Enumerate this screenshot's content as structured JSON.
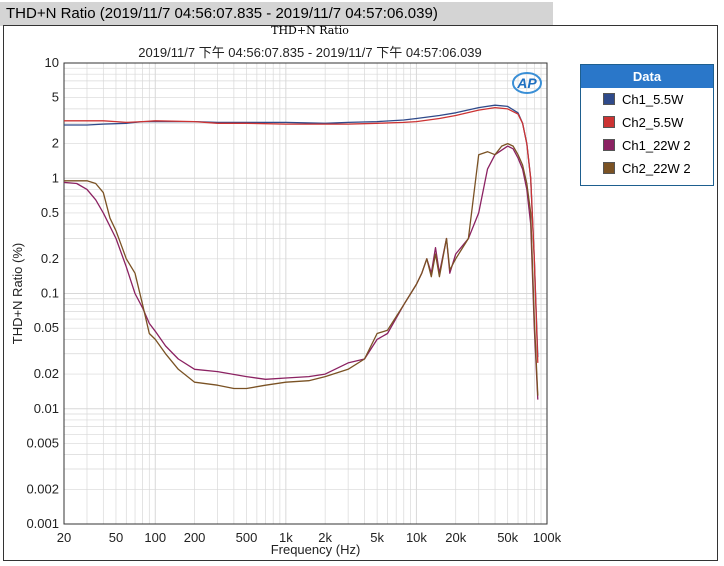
{
  "window": {
    "title": "THD+N Ratio (2019/11/7  04:56:07.835 - 2019/11/7  04:57:06.039)"
  },
  "colors": {
    "grid": "#d8d8d8",
    "axis": "#333333",
    "legend_header": "#2a77c9"
  },
  "chart_data": {
    "type": "line",
    "title": "THD+N Ratio",
    "subtitle": "2019/11/7 下午 04:56:07.835 - 2019/11/7 下午 04:57:06.039",
    "xlabel": "Frequency (Hz)",
    "ylabel": "THD+N Ratio (%)",
    "x_scale": "log",
    "y_scale": "log",
    "xlim": [
      20,
      100000
    ],
    "ylim": [
      0.001,
      10
    ],
    "grid": true,
    "legend_position": "right",
    "legend_title": "Data",
    "logo": "AP",
    "x_ticks": [
      {
        "v": 20,
        "label": "20"
      },
      {
        "v": 50,
        "label": "50"
      },
      {
        "v": 100,
        "label": "100"
      },
      {
        "v": 200,
        "label": "200"
      },
      {
        "v": 500,
        "label": "500"
      },
      {
        "v": 1000,
        "label": "1k"
      },
      {
        "v": 2000,
        "label": "2k"
      },
      {
        "v": 5000,
        "label": "5k"
      },
      {
        "v": 10000,
        "label": "10k"
      },
      {
        "v": 20000,
        "label": "20k"
      },
      {
        "v": 50000,
        "label": "50k"
      },
      {
        "v": 100000,
        "label": "100k"
      }
    ],
    "y_ticks": [
      {
        "v": 10,
        "label": "10"
      },
      {
        "v": 5,
        "label": "5"
      },
      {
        "v": 2,
        "label": "2"
      },
      {
        "v": 1,
        "label": "1"
      },
      {
        "v": 0.5,
        "label": "0.5"
      },
      {
        "v": 0.2,
        "label": "0.2"
      },
      {
        "v": 0.1,
        "label": "0.1"
      },
      {
        "v": 0.05,
        "label": "0.05"
      },
      {
        "v": 0.02,
        "label": "0.02"
      },
      {
        "v": 0.01,
        "label": "0.01"
      },
      {
        "v": 0.005,
        "label": "0.005"
      },
      {
        "v": 0.002,
        "label": "0.002"
      },
      {
        "v": 0.001,
        "label": "0.001"
      }
    ],
    "series": [
      {
        "name": "Ch1_5.5W",
        "color": "#2f4a8a",
        "points": [
          [
            20,
            2.9
          ],
          [
            30,
            2.9
          ],
          [
            40,
            2.95
          ],
          [
            60,
            3.0
          ],
          [
            80,
            3.1
          ],
          [
            100,
            3.1
          ],
          [
            200,
            3.1
          ],
          [
            300,
            3.05
          ],
          [
            500,
            3.05
          ],
          [
            1000,
            3.05
          ],
          [
            2000,
            3.0
          ],
          [
            3000,
            3.05
          ],
          [
            5000,
            3.1
          ],
          [
            8000,
            3.2
          ],
          [
            10000,
            3.3
          ],
          [
            15000,
            3.5
          ],
          [
            20000,
            3.7
          ],
          [
            30000,
            4.1
          ],
          [
            40000,
            4.3
          ],
          [
            50000,
            4.2
          ],
          [
            60000,
            3.7
          ],
          [
            65000,
            3.0
          ],
          [
            70000,
            2.0
          ],
          [
            75000,
            1.0
          ],
          [
            80000,
            0.2
          ],
          [
            85000,
            0.028
          ]
        ]
      },
      {
        "name": "Ch2_5.5W",
        "color": "#cc3333",
        "points": [
          [
            20,
            3.15
          ],
          [
            30,
            3.15
          ],
          [
            40,
            3.15
          ],
          [
            50,
            3.1
          ],
          [
            60,
            3.05
          ],
          [
            80,
            3.1
          ],
          [
            100,
            3.15
          ],
          [
            200,
            3.1
          ],
          [
            300,
            3.0
          ],
          [
            500,
            3.0
          ],
          [
            1000,
            2.95
          ],
          [
            2000,
            2.95
          ],
          [
            3000,
            2.95
          ],
          [
            5000,
            3.0
          ],
          [
            8000,
            3.05
          ],
          [
            10000,
            3.1
          ],
          [
            15000,
            3.3
          ],
          [
            20000,
            3.5
          ],
          [
            30000,
            3.9
          ],
          [
            40000,
            4.1
          ],
          [
            50000,
            4.0
          ],
          [
            60000,
            3.6
          ],
          [
            65000,
            3.0
          ],
          [
            70000,
            2.0
          ],
          [
            75000,
            1.0
          ],
          [
            80000,
            0.2
          ],
          [
            85000,
            0.025
          ]
        ]
      },
      {
        "name": "Ch1_22W 2",
        "color": "#8b2262",
        "points": [
          [
            20,
            0.92
          ],
          [
            25,
            0.9
          ],
          [
            30,
            0.8
          ],
          [
            35,
            0.65
          ],
          [
            40,
            0.5
          ],
          [
            50,
            0.3
          ],
          [
            60,
            0.17
          ],
          [
            70,
            0.1
          ],
          [
            80,
            0.075
          ],
          [
            90,
            0.055
          ],
          [
            100,
            0.047
          ],
          [
            120,
            0.035
          ],
          [
            150,
            0.027
          ],
          [
            200,
            0.022
          ],
          [
            300,
            0.021
          ],
          [
            500,
            0.019
          ],
          [
            700,
            0.018
          ],
          [
            1000,
            0.0185
          ],
          [
            1500,
            0.019
          ],
          [
            2000,
            0.02
          ],
          [
            3000,
            0.025
          ],
          [
            4000,
            0.027
          ],
          [
            5000,
            0.04
          ],
          [
            6000,
            0.045
          ],
          [
            8000,
            0.08
          ],
          [
            10000,
            0.12
          ],
          [
            11000,
            0.15
          ],
          [
            12000,
            0.2
          ],
          [
            13000,
            0.15
          ],
          [
            14000,
            0.25
          ],
          [
            15000,
            0.15
          ],
          [
            17000,
            0.3
          ],
          [
            18000,
            0.15
          ],
          [
            20000,
            0.22
          ],
          [
            25000,
            0.3
          ],
          [
            30000,
            0.5
          ],
          [
            35000,
            1.2
          ],
          [
            40000,
            1.6
          ],
          [
            50000,
            1.9
          ],
          [
            55000,
            1.8
          ],
          [
            60000,
            1.5
          ],
          [
            65000,
            1.2
          ],
          [
            70000,
            0.8
          ],
          [
            75000,
            0.4
          ],
          [
            80000,
            0.05
          ],
          [
            85000,
            0.012
          ]
        ]
      },
      {
        "name": "Ch2_22W 2",
        "color": "#7a5224",
        "points": [
          [
            20,
            0.95
          ],
          [
            25,
            0.95
          ],
          [
            30,
            0.95
          ],
          [
            35,
            0.9
          ],
          [
            40,
            0.75
          ],
          [
            45,
            0.45
          ],
          [
            50,
            0.35
          ],
          [
            60,
            0.2
          ],
          [
            70,
            0.15
          ],
          [
            80,
            0.08
          ],
          [
            90,
            0.045
          ],
          [
            100,
            0.04
          ],
          [
            120,
            0.03
          ],
          [
            150,
            0.022
          ],
          [
            200,
            0.017
          ],
          [
            300,
            0.016
          ],
          [
            400,
            0.015
          ],
          [
            500,
            0.015
          ],
          [
            700,
            0.016
          ],
          [
            1000,
            0.017
          ],
          [
            1500,
            0.0175
          ],
          [
            2000,
            0.019
          ],
          [
            3000,
            0.022
          ],
          [
            4000,
            0.027
          ],
          [
            5000,
            0.045
          ],
          [
            6000,
            0.048
          ],
          [
            8000,
            0.08
          ],
          [
            10000,
            0.12
          ],
          [
            11000,
            0.15
          ],
          [
            12000,
            0.2
          ],
          [
            13000,
            0.14
          ],
          [
            14000,
            0.22
          ],
          [
            15000,
            0.14
          ],
          [
            17000,
            0.3
          ],
          [
            18000,
            0.16
          ],
          [
            20000,
            0.2
          ],
          [
            25000,
            0.3
          ],
          [
            30000,
            1.6
          ],
          [
            35000,
            1.7
          ],
          [
            40000,
            1.6
          ],
          [
            45000,
            1.9
          ],
          [
            50000,
            2.0
          ],
          [
            55000,
            1.9
          ],
          [
            60000,
            1.6
          ],
          [
            65000,
            1.3
          ],
          [
            70000,
            0.9
          ],
          [
            75000,
            0.5
          ],
          [
            80000,
            0.06
          ],
          [
            85000,
            0.013
          ]
        ]
      }
    ]
  },
  "legend": {
    "header": "Data",
    "items": [
      {
        "label": "Ch1_5.5W",
        "color": "#2f4a8a"
      },
      {
        "label": "Ch2_5.5W",
        "color": "#cc3333"
      },
      {
        "label": "Ch1_22W 2",
        "color": "#8b2262"
      },
      {
        "label": "Ch2_22W 2",
        "color": "#7a5224"
      }
    ]
  }
}
